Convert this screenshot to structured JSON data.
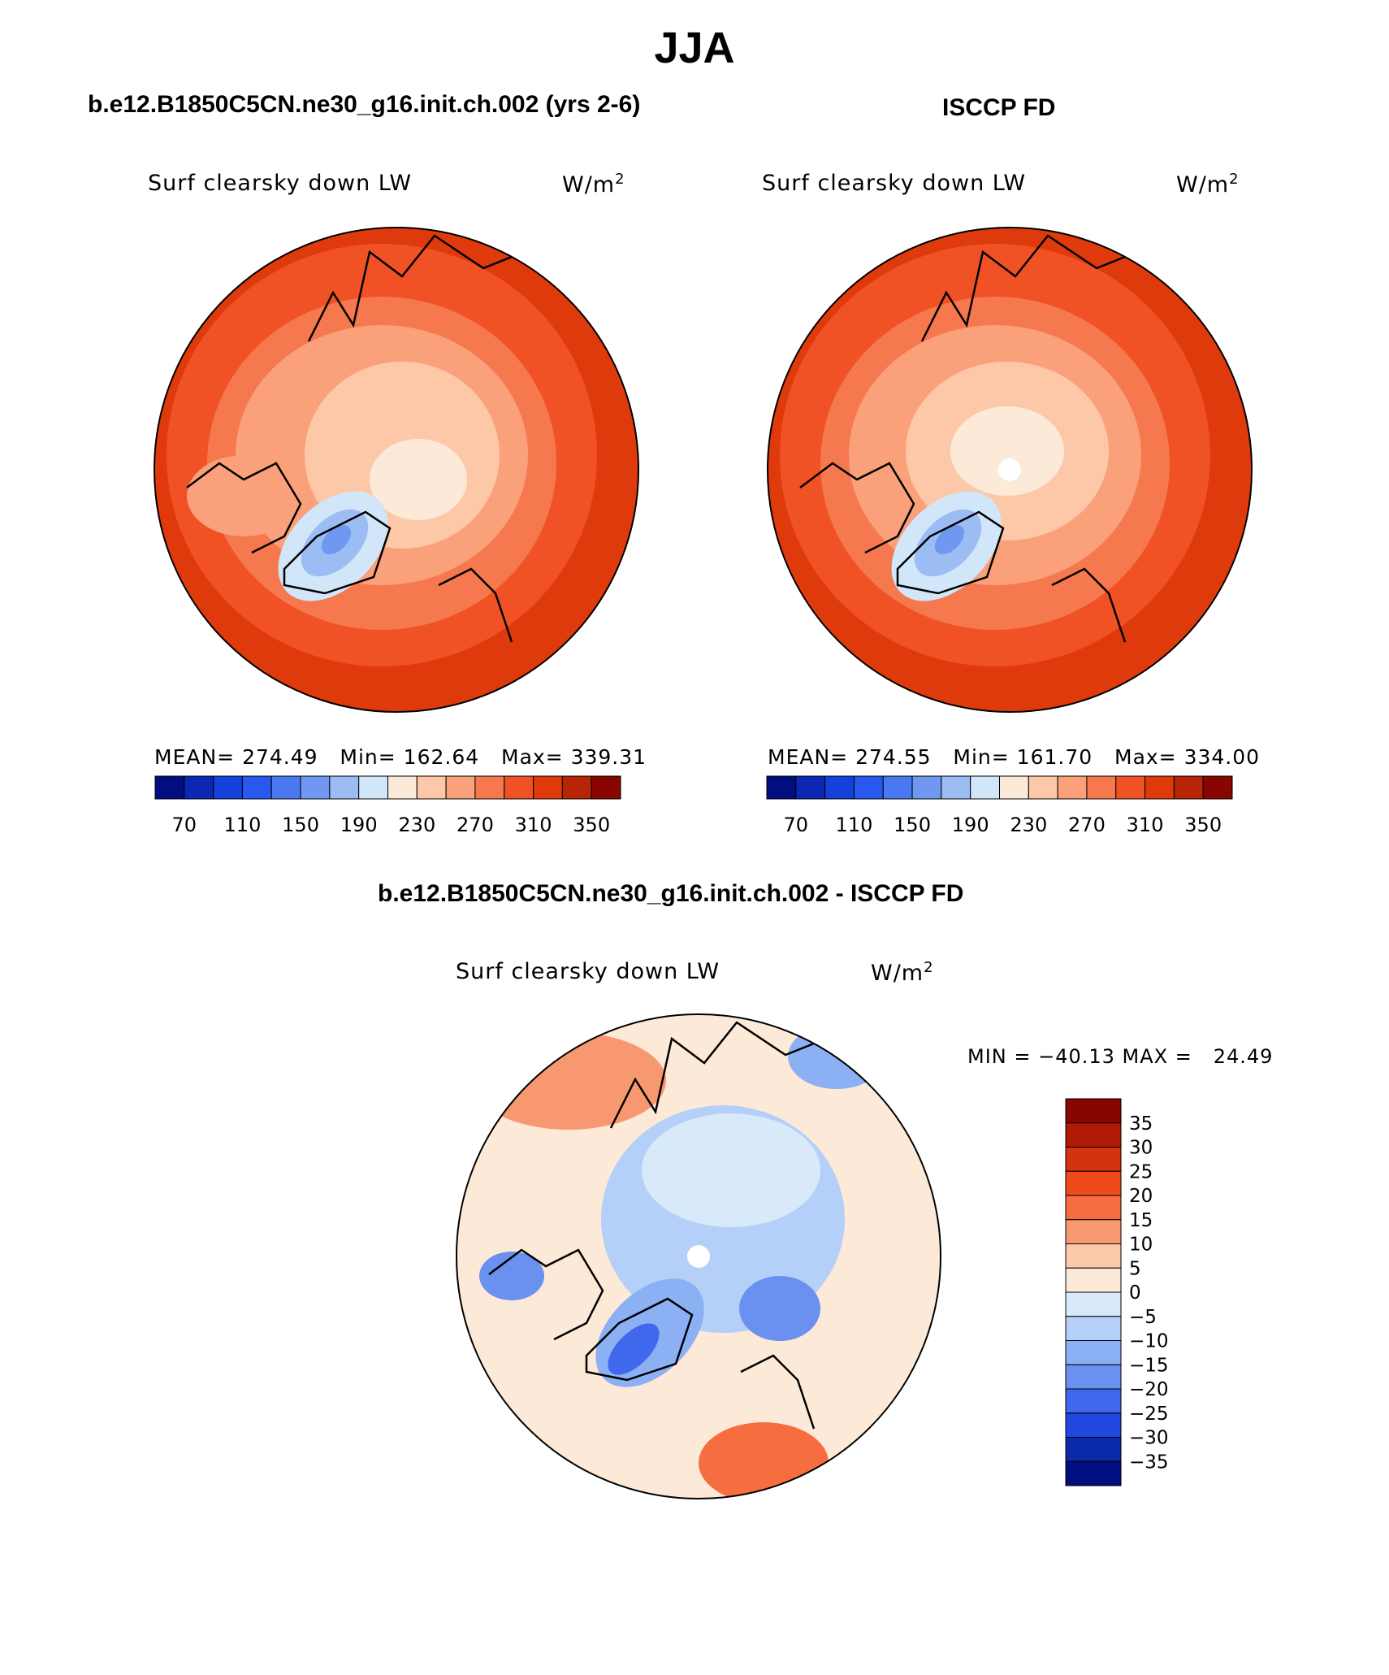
{
  "title": "JJA",
  "panels": [
    {
      "header": "b.e12.B1850C5CN.ne30_g16.init.ch.002 (yrs 2-6)",
      "variable": "Surf clearsky down LW",
      "units": "W/m",
      "units_sup": "2",
      "stats": {
        "mean_label": "MEAN=",
        "mean": "274.49",
        "min_label": "Min=",
        "min": "162.64",
        "max_label": "Max=",
        "max": "339.31"
      }
    },
    {
      "header": "ISCCP FD",
      "variable": "Surf clearsky down LW",
      "units": "W/m",
      "units_sup": "2",
      "stats": {
        "mean_label": "MEAN=",
        "mean": "274.55",
        "min_label": "Min=",
        "min": "161.70",
        "max_label": "Max=",
        "max": "334.00"
      }
    }
  ],
  "diff_panel": {
    "header": "b.e12.B1850C5CN.ne30_g16.init.ch.002 - ISCCP FD",
    "variable": "Surf clearsky down LW",
    "units": "W/m",
    "units_sup": "2",
    "minmax": "MIN = −40.13 MAX =   24.49"
  },
  "abs_colorbar": {
    "colors": [
      "#000e80",
      "#0a28b4",
      "#1440dc",
      "#2858f0",
      "#4a78f0",
      "#7098f0",
      "#9cbcf4",
      "#d2e6fa",
      "#fde9d8",
      "#fcc8a8",
      "#faa07a",
      "#f6784e",
      "#f05226",
      "#de3a0c",
      "#b82406",
      "#880500"
    ],
    "labels": [
      "70",
      "110",
      "150",
      "190",
      "230",
      "270",
      "310",
      "350"
    ]
  },
  "diff_colorbar": {
    "colors": [
      "#880500",
      "#b01a05",
      "#d43210",
      "#ee4a1c",
      "#f66e40",
      "#f89870",
      "#fccaa8",
      "#fde9d8",
      "#d8eafa",
      "#b4d0f8",
      "#8cb0f4",
      "#6a90f0",
      "#4068ec",
      "#2048e0",
      "#0a2aaa",
      "#000e80"
    ],
    "labels": [
      "35",
      "30",
      "25",
      "20",
      "15",
      "10",
      "5",
      "0",
      "−5",
      "−10",
      "−15",
      "−20",
      "−25",
      "−30",
      "−35"
    ]
  }
}
